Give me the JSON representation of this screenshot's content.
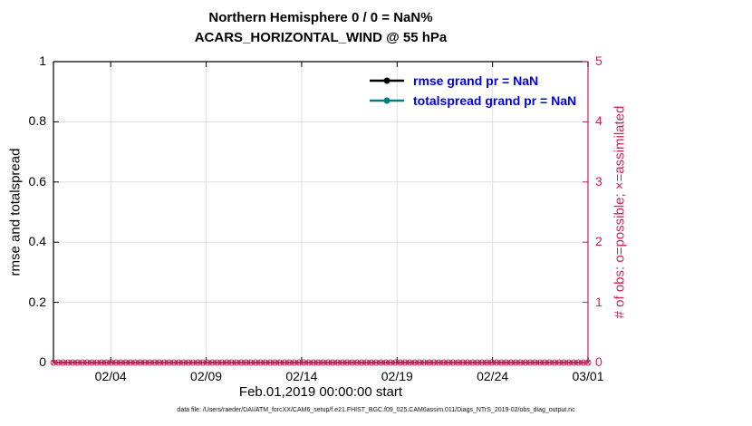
{
  "figure": {
    "footer": "data file: /Users/raeder/DAI/ATM_forcXX/CAM6_setup/f.e21.FHIST_BGC.f09_025.CAM6assim.011/Diags_NTrS_2019-02/obs_diag_output.nc"
  },
  "chart_data": {
    "type": "line",
    "title": "Northern Hemisphere 0 / 0 = NaN%",
    "subtitle": "ACARS_HORIZONTAL_WIND @ 55 hPa",
    "xlabel": "Feb.01,2019 00:00:00 start",
    "ylabel_left": "rmse and totalspread",
    "ylabel_right": "# of obs: o=possible; ×=assimilated",
    "ylim_left": [
      0,
      1
    ],
    "yticks_left": [
      0,
      0.2,
      0.4,
      0.6,
      0.8,
      1
    ],
    "ytick_labels_left": [
      "0",
      "0.2",
      "0.4",
      "0.6",
      "0.8",
      "1"
    ],
    "ylim_right": [
      0,
      5
    ],
    "yticks_right": [
      0,
      1,
      2,
      3,
      4,
      5
    ],
    "ytick_labels_right": [
      "0",
      "1",
      "2",
      "3",
      "4",
      "5"
    ],
    "x_start": "02/01",
    "x_span_days": 28,
    "x_ticks": [
      {
        "label": "02/04",
        "day": 3
      },
      {
        "label": "02/09",
        "day": 8
      },
      {
        "label": "02/14",
        "day": 13
      },
      {
        "label": "02/19",
        "day": 18
      },
      {
        "label": "02/24",
        "day": 23
      },
      {
        "label": "03/01",
        "day": 28
      }
    ],
    "series": [
      {
        "name": "rmse",
        "legend": "rmse grand pr = NaN",
        "color": "#000000",
        "values": []
      },
      {
        "name": "totalspread",
        "legend": "totalspread grand pr = NaN",
        "color": "#008080",
        "values": []
      }
    ],
    "obs_counts": {
      "axis": "right",
      "n_points": 112,
      "possible": {
        "marker": "o",
        "constant_value": 0
      },
      "assimilated": {
        "marker": "×",
        "constant_value": 0
      }
    },
    "grid": true,
    "legend_position": "top-right-inside",
    "colors": {
      "right_axis": "#d2205a",
      "legend_text": "#0000ee",
      "grid": "#e0e0e0",
      "axis": "#000000"
    }
  }
}
